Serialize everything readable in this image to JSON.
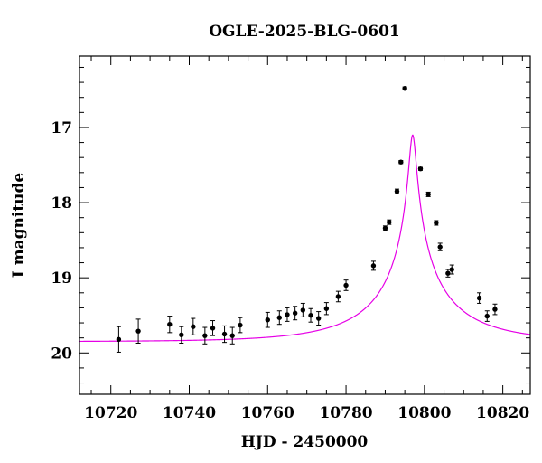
{
  "chart_data": {
    "type": "scatter",
    "title": "OGLE-2025-BLG-0601",
    "xlabel": "HJD - 2450000",
    "ylabel": "I magnitude",
    "xlim": [
      10712,
      10827
    ],
    "ylim": [
      20.55,
      16.05
    ],
    "y_inverted": true,
    "grid": false,
    "x_ticks": [
      10720,
      10740,
      10760,
      10780,
      10800,
      10820
    ],
    "y_ticks": [
      17,
      18,
      19,
      20
    ],
    "colors": {
      "model": "#e600e6",
      "points": "#000000"
    },
    "series": [
      {
        "type": "errorbar",
        "x": [
          10722,
          10727,
          10735,
          10738,
          10741,
          10744,
          10746,
          10749,
          10751,
          10753,
          10760,
          10763,
          10765,
          10767,
          10769,
          10771,
          10773,
          10775,
          10778,
          10780,
          10787,
          10790,
          10791,
          10793,
          10794,
          10795,
          10799,
          10801,
          10803,
          10804,
          10806,
          10807,
          10814,
          10816,
          10818
        ],
        "y": [
          19.82,
          19.71,
          19.62,
          19.76,
          19.65,
          19.77,
          19.67,
          19.75,
          19.77,
          19.63,
          19.56,
          19.53,
          19.49,
          19.47,
          19.43,
          19.5,
          19.54,
          19.41,
          19.25,
          19.1,
          18.84,
          18.34,
          18.26,
          17.85,
          17.46,
          16.48,
          17.55,
          17.89,
          18.27,
          18.59,
          18.94,
          18.89,
          19.27,
          19.51,
          19.42
        ],
        "err": [
          0.17,
          0.16,
          0.11,
          0.11,
          0.11,
          0.11,
          0.1,
          0.11,
          0.11,
          0.1,
          0.1,
          0.09,
          0.09,
          0.09,
          0.09,
          0.09,
          0.09,
          0.08,
          0.07,
          0.07,
          0.06,
          0.03,
          0.03,
          0.03,
          0.02,
          0.02,
          0.02,
          0.03,
          0.03,
          0.05,
          0.05,
          0.06,
          0.07,
          0.07,
          0.07
        ]
      },
      {
        "type": "line",
        "model": {
          "t0": 10797.0,
          "tE": 24.5,
          "u0": 0.035,
          "base_mag": 19.85,
          "fs": 0.42
        }
      }
    ]
  }
}
